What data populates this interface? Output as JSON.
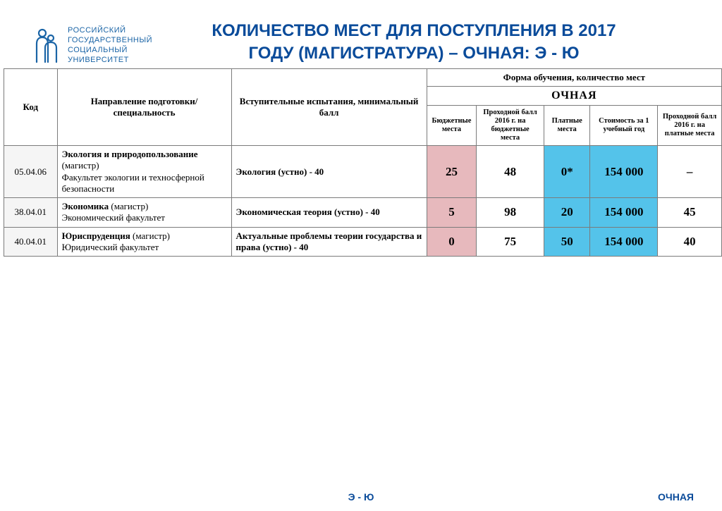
{
  "logo": {
    "line1": "РОССИЙСКИЙ",
    "line2": "ГОСУДАРСТВЕННЫЙ",
    "line3": "СОЦИАЛЬНЫЙ",
    "line4": "УНИВЕРСИТЕТ",
    "icon_color": "#1a64a6"
  },
  "title": "КОЛИЧЕСТВО МЕСТ ДЛЯ ПОСТУПЛЕНИЯ В 2017 ГОДУ (МАГИСТРАТУРА) – ОЧНАЯ: Э - Ю",
  "columns": {
    "code": "Код",
    "name": "Направление подготовки/ специальность",
    "exam": "Вступительные испытания, минимальный балл",
    "form_header": "Форма обучения, количество мест",
    "ochnaya": "ОЧНАЯ",
    "budget": "Бюджетные места",
    "pass16_budget": "Проходной балл 2016 г. на бюджетные места",
    "paid": "Платные места",
    "cost": "Стоимость за 1 учебный год",
    "pass16_paid": "Проходной балл 2016 г. на платные места"
  },
  "rows": [
    {
      "code": "05.04.06",
      "program": "Экология и природопользование",
      "grade": "(магистр)",
      "faculty": "Факультет экологии и техносферной безопасности",
      "exam": "Экология (устно) - 40",
      "budget": "25",
      "pass16_budget": "48",
      "paid": "0*",
      "cost": "154 000",
      "pass16_paid": "–"
    },
    {
      "code": "38.04.01",
      "program": "Экономика",
      "grade": "(магистр)",
      "faculty": "Экономический факультет",
      "exam": "Экономическая теория (устно) - 40",
      "budget": "5",
      "pass16_budget": "98",
      "paid": "20",
      "cost": "154 000",
      "pass16_paid": "45"
    },
    {
      "code": "40.04.01",
      "program": "Юриспруденция",
      "grade": "(магистр)",
      "faculty": "Юридический факультет",
      "exam": "Актуальные проблемы теории государства и права (устно) - 40",
      "budget": "0",
      "pass16_budget": "75",
      "paid": "50",
      "cost": "154 000",
      "pass16_paid": "40"
    }
  ],
  "footer": {
    "center": "Э - Ю",
    "right": "ОЧНАЯ"
  },
  "colors": {
    "title": "#0a4b9a",
    "budget_header_bg": "#f0dcdc",
    "budget_cell_bg": "#e7b9bd",
    "paid_header_bg": "#7bd2f0",
    "paid_cell_bg": "#54c3ea",
    "border": "#7b7b7b",
    "code_bg": "#f5f5f5"
  }
}
